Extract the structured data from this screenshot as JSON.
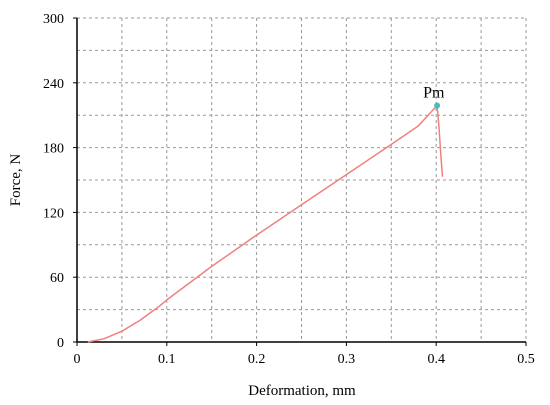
{
  "chart_data": {
    "type": "line",
    "title": "",
    "xlabel": "Deformation, mm",
    "ylabel": "Force, N",
    "xlim": [
      0,
      0.5
    ],
    "ylim": [
      0,
      300
    ],
    "x_ticks": [
      0,
      0.1,
      0.2,
      0.3,
      0.4,
      0.5
    ],
    "x_tick_labels": [
      "0",
      "0.1",
      "0.2",
      "0.3",
      "0.4",
      "0.5"
    ],
    "y_ticks": [
      0,
      60,
      120,
      180,
      240,
      300
    ],
    "y_tick_labels": [
      "0",
      "60",
      "120",
      "180",
      "240",
      "300"
    ],
    "grid": true,
    "grid_style": "dashed",
    "series": [
      {
        "color": "#f08080",
        "x": [
          0.012,
          0.03,
          0.05,
          0.07,
          0.09,
          0.1,
          0.15,
          0.2,
          0.25,
          0.3,
          0.35,
          0.38,
          0.401,
          0.403,
          0.405,
          0.407
        ],
        "y": [
          0,
          3,
          10,
          20,
          32,
          39,
          70,
          99,
          127,
          155,
          183,
          200,
          219,
          200,
          175,
          153
        ]
      }
    ],
    "annotations": [
      {
        "text": "Pm",
        "x": 0.401,
        "y": 219,
        "marker_color": "#40c0c0"
      }
    ]
  }
}
